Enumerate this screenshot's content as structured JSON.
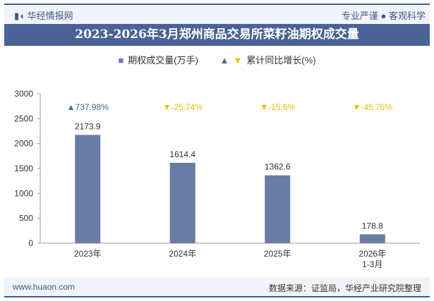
{
  "header": {
    "logo": "华经情报网",
    "slogan": "专业严谨 ● 客观科学"
  },
  "footer": {
    "website": "www.huaon.com",
    "source": "数据来源：证监局，华经产业研究院整理"
  },
  "colors": {
    "bar": "#6a7ba6",
    "up": "#3d6e9a",
    "down": "#f0b800",
    "title_bg": "#4a6296"
  },
  "chart_data": {
    "type": "bar",
    "title": "2023-2026年3月郑州商品交易所菜籽油期权成交量",
    "categories": [
      "2023年",
      "2024年",
      "2025年",
      "2026年\n1-3月"
    ],
    "series": [
      {
        "name": "期权成交量(万手)",
        "values": [
          2173.9,
          1614.4,
          1362.6,
          178.8
        ]
      }
    ],
    "growth": {
      "name": "累计同比增长(%)",
      "values": [
        "737.98%",
        "-25.74%",
        "-15.6%",
        "-45.75%"
      ],
      "direction": [
        "up",
        "down",
        "down",
        "down"
      ]
    },
    "ylim": [
      0,
      3000
    ],
    "yticks": [
      0,
      500,
      1000,
      1500,
      2000,
      2500,
      3000
    ],
    "grid": false,
    "legend": "top"
  }
}
